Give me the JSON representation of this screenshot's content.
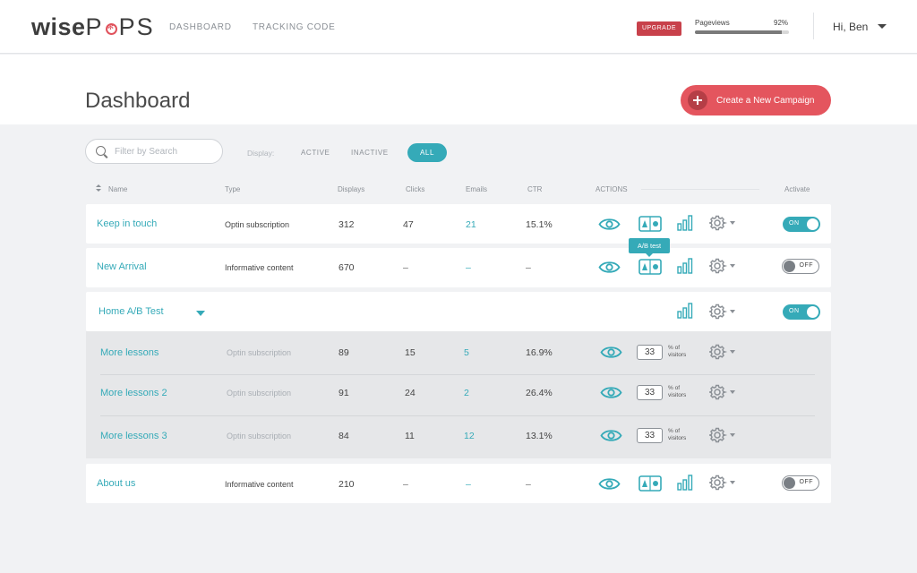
{
  "app": {
    "logo_bold": "wise",
    "logo_light": "POPS"
  },
  "nav": {
    "dashboard": "DASHBOARD",
    "tracking_code": "TRACKING CODE",
    "upgrade": "UPGRADE",
    "pageviews_label": "Pageviews",
    "pageviews_percent": "92%",
    "pageviews_fraction": 0.92,
    "user_greeting": "Hi, Ben"
  },
  "header": {
    "title": "Dashboard",
    "create_button": "Create a New Campaign"
  },
  "filters": {
    "search_placeholder": "Filter by Search",
    "display_label": "Display:",
    "options": [
      "ACTIVE",
      "INACTIVE",
      "ALL"
    ],
    "selected": "ALL"
  },
  "columns": {
    "name": "Name",
    "type": "Type",
    "displays": "Displays",
    "clicks": "Clicks",
    "emails": "Emails",
    "ctr": "CTR",
    "actions": "ACTIONS",
    "activate": "Activate"
  },
  "tooltip": "A/B test",
  "campaigns": [
    {
      "name": "Keep in touch",
      "type": "Optin subscription",
      "displays": "312",
      "clicks": "47",
      "emails": "21",
      "ctr": "15.1%",
      "active": true,
      "toggle": "ON"
    },
    {
      "name": "New Arrival",
      "type": "Informative content",
      "displays": "670",
      "clicks": "–",
      "emails": "–",
      "ctr": "–",
      "active": false,
      "toggle": "OFF"
    },
    {
      "name": "Home A/B Test",
      "active": true,
      "toggle": "ON",
      "variants": [
        {
          "name": "More lessons",
          "type": "Optin subscription",
          "displays": "89",
          "clicks": "15",
          "emails": "5",
          "ctr": "16.9%",
          "percent": "33"
        },
        {
          "name": "More lessons 2",
          "type": "Optin subscription",
          "displays": "91",
          "clicks": "24",
          "emails": "2",
          "ctr": "26.4%",
          "percent": "33"
        },
        {
          "name": "More lessons 3",
          "type": "Optin subscription",
          "displays": "84",
          "clicks": "11",
          "emails": "12",
          "ctr": "13.1%",
          "percent": "33"
        }
      ],
      "percent_label_line1": "% of",
      "percent_label_line2": "visitors"
    },
    {
      "name": "About us",
      "type": "Informative content",
      "displays": "210",
      "clicks": "–",
      "emails": "–",
      "ctr": "–",
      "active": false,
      "toggle": "OFF"
    }
  ],
  "colors": {
    "accent": "#35aab8",
    "brand_red": "#e4555e",
    "upgrade": "#c8414b"
  },
  "icons": [
    "eye-icon",
    "ab-test-icon",
    "stats-bars-icon",
    "gear-icon",
    "search-icon"
  ]
}
